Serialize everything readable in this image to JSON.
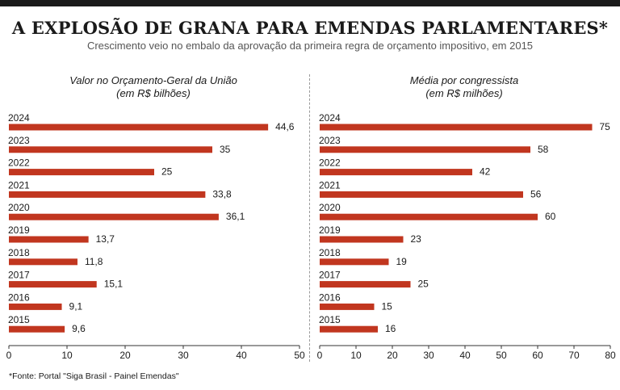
{
  "header": {
    "title": "A EXPLOSÃO DE GRANA PARA EMENDAS PARLAMENTARES*",
    "subtitle": "Crescimento veio no embalo da aprovação da primeira regra de orçamento impositivo, em 2015"
  },
  "footer": {
    "source": "*Fonte: Portal \"Siga Brasil - Painel Emendas\""
  },
  "colors": {
    "bar": "#c1361f",
    "text": "#1a1a1a",
    "axis": "#333333"
  },
  "chart_data": [
    {
      "type": "bar",
      "orientation": "horizontal",
      "title": "Valor no Orçamento-Geral da União",
      "subtitle": "(em R$ bilhões)",
      "categories": [
        "2024",
        "2023",
        "2022",
        "2021",
        "2020",
        "2019",
        "2018",
        "2017",
        "2016",
        "2015"
      ],
      "values": [
        44.6,
        35,
        25,
        33.8,
        36.1,
        13.7,
        11.8,
        15.1,
        9.1,
        9.6
      ],
      "value_labels": [
        "44,6",
        "35",
        "25",
        "33,8",
        "36,1",
        "13,7",
        "11,8",
        "15,1",
        "9,1",
        "9,6"
      ],
      "xlim": [
        0,
        50
      ],
      "xticks": [
        "0",
        "10",
        "20",
        "30",
        "40",
        "50"
      ],
      "grid": false,
      "legend": false
    },
    {
      "type": "bar",
      "orientation": "horizontal",
      "title": "Média por congressista",
      "subtitle": "(em R$ milhões)",
      "categories": [
        "2024",
        "2023",
        "2022",
        "2021",
        "2020",
        "2019",
        "2018",
        "2017",
        "2016",
        "2015"
      ],
      "values": [
        75,
        58,
        42,
        56,
        60,
        23,
        19,
        25,
        15,
        16
      ],
      "value_labels": [
        "75",
        "58",
        "42",
        "56",
        "60",
        "23",
        "19",
        "25",
        "15",
        "16"
      ],
      "xlim": [
        0,
        80
      ],
      "xticks": [
        "0",
        "10",
        "20",
        "30",
        "40",
        "50",
        "60",
        "70",
        "80"
      ],
      "grid": false,
      "legend": false
    }
  ]
}
